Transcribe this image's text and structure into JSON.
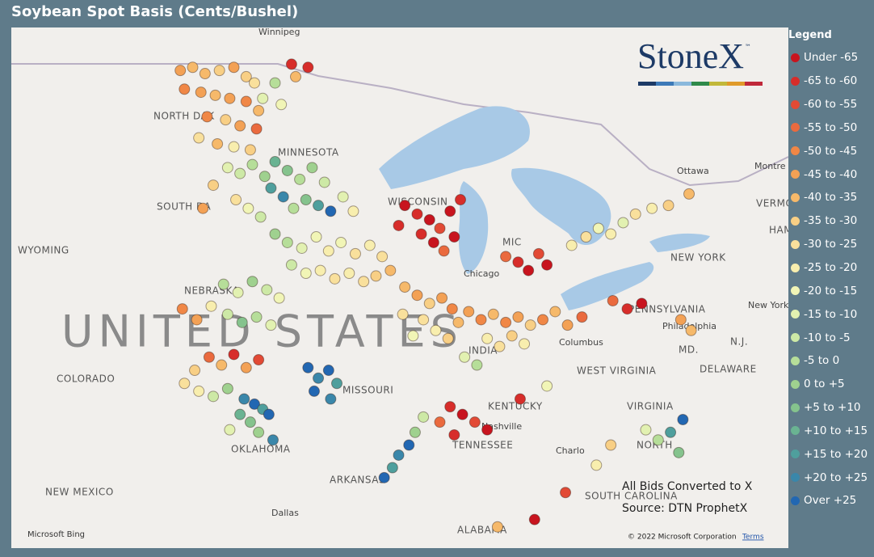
{
  "header": {
    "title": "Soybean Spot Basis (Cents/Bushel)"
  },
  "logo": {
    "text": "StoneX",
    "mark": "™"
  },
  "legend": {
    "title": "Legend",
    "items": [
      {
        "label": "Under -65",
        "color": "#c8141e"
      },
      {
        "label": "-65 to -60",
        "color": "#d72d2a"
      },
      {
        "label": "-60 to -55",
        "color": "#e24a35"
      },
      {
        "label": "-55 to -50",
        "color": "#ea6a3e"
      },
      {
        "label": "-50 to -45",
        "color": "#f08746"
      },
      {
        "label": "-45 to -40",
        "color": "#f3a155"
      },
      {
        "label": "-40 to -35",
        "color": "#f6b96a"
      },
      {
        "label": "-35 to -30",
        "color": "#f8cf85"
      },
      {
        "label": "-30 to -25",
        "color": "#f9e09c"
      },
      {
        "label": "-25 to -20",
        "color": "#f8eeae"
      },
      {
        "label": "-20 to -15",
        "color": "#f1f5b6"
      },
      {
        "label": "-15 to -10",
        "color": "#e2f1b1"
      },
      {
        "label": "-10 to -5",
        "color": "#cde9a6"
      },
      {
        "label": "-5 to 0",
        "color": "#b6de99"
      },
      {
        "label": "0 to +5",
        "color": "#9fd18f"
      },
      {
        "label": "+5 to +10",
        "color": "#85c38d"
      },
      {
        "label": "+10 to +15",
        "color": "#6ab392"
      },
      {
        "label": "+15 to +20",
        "color": "#4f9f9d"
      },
      {
        "label": "+20 to +25",
        "color": "#3a87aa"
      },
      {
        "label": "Over +25",
        "color": "#2267b2"
      }
    ]
  },
  "annotations": [
    "All Bids Converted to X",
    "Source: DTN ProphetX"
  ],
  "attribution": {
    "provider": "Microsoft Bing",
    "copyright": "© 2022 Microsoft Corporation",
    "terms": "Terms"
  },
  "places": [
    "Winnipeg",
    "NORTH DAK",
    "MINNESOTA",
    "SOUTH DA",
    "WYOMING",
    "NEBRASKA",
    "UNITED STATES",
    "COLORADO",
    "NEW MEXICO",
    "OKLAHOMA",
    "ARKANSAS",
    "Dallas",
    "MISSOURI",
    "TENNESSEE",
    "Nashville",
    "KENTUCKY",
    "INDIA",
    "Columbus",
    "WEST VIRGINIA",
    "VIRGINIA",
    "NORTH",
    "SOUTH CAROLINA",
    "Charlo",
    "ALABAMA",
    "PENNSYLVANIA",
    "Philadelphia",
    "NEW YORK",
    "New York",
    "Ottawa",
    "Montre",
    "Chicago",
    "WISCONSIN",
    "MIC",
    "DELAWARE",
    "MD.",
    "N.J.",
    "VERMON",
    "HAM"
  ],
  "points": [
    [
      -101.2,
      48.8,
      5
    ],
    [
      -100.6,
      48.9,
      6
    ],
    [
      -100.0,
      48.7,
      6
    ],
    [
      -99.3,
      48.8,
      7
    ],
    [
      -98.6,
      48.9,
      5
    ],
    [
      -98.0,
      48.6,
      7
    ],
    [
      -97.6,
      48.4,
      8
    ],
    [
      -101.0,
      48.2,
      4
    ],
    [
      -100.2,
      48.1,
      5
    ],
    [
      -99.5,
      48.0,
      6
    ],
    [
      -98.8,
      47.9,
      5
    ],
    [
      -98.0,
      47.8,
      4
    ],
    [
      -97.4,
      47.5,
      6
    ],
    [
      -99.9,
      47.3,
      4
    ],
    [
      -99.0,
      47.2,
      7
    ],
    [
      -98.3,
      47.0,
      5
    ],
    [
      -97.5,
      46.9,
      3
    ],
    [
      -100.3,
      46.6,
      8
    ],
    [
      -99.4,
      46.4,
      6
    ],
    [
      -98.6,
      46.3,
      9
    ],
    [
      -97.8,
      46.2,
      7
    ],
    [
      -97.2,
      47.9,
      11
    ],
    [
      -96.6,
      48.4,
      13
    ],
    [
      -96.3,
      47.7,
      10
    ],
    [
      -95.6,
      48.6,
      6
    ],
    [
      -95.0,
      48.9,
      1
    ],
    [
      -95.8,
      49.0,
      1
    ],
    [
      -98.9,
      45.6,
      11
    ],
    [
      -98.3,
      45.4,
      12
    ],
    [
      -97.7,
      45.7,
      13
    ],
    [
      -97.1,
      45.3,
      14
    ],
    [
      -96.6,
      45.8,
      16
    ],
    [
      -96.0,
      45.5,
      15
    ],
    [
      -95.4,
      45.2,
      13
    ],
    [
      -94.8,
      45.6,
      14
    ],
    [
      -94.2,
      45.1,
      12
    ],
    [
      -96.8,
      44.9,
      17
    ],
    [
      -96.2,
      44.6,
      18
    ],
    [
      -95.7,
      44.2,
      13
    ],
    [
      -95.1,
      44.5,
      15
    ],
    [
      -94.5,
      44.3,
      17
    ],
    [
      -93.9,
      44.1,
      19
    ],
    [
      -93.3,
      44.6,
      11
    ],
    [
      -92.8,
      44.1,
      9
    ],
    [
      -98.5,
      44.5,
      8
    ],
    [
      -97.9,
      44.2,
      10
    ],
    [
      -97.3,
      43.9,
      12
    ],
    [
      -99.6,
      45.0,
      7
    ],
    [
      -100.1,
      44.2,
      5
    ],
    [
      -96.6,
      43.3,
      14
    ],
    [
      -96.0,
      43.0,
      13
    ],
    [
      -95.3,
      42.8,
      11
    ],
    [
      -94.6,
      43.2,
      10
    ],
    [
      -94.0,
      42.7,
      9
    ],
    [
      -93.4,
      43.0,
      10
    ],
    [
      -92.7,
      42.6,
      8
    ],
    [
      -92.0,
      42.9,
      9
    ],
    [
      -91.4,
      42.5,
      8
    ],
    [
      -95.8,
      42.2,
      12
    ],
    [
      -95.1,
      41.9,
      10
    ],
    [
      -94.4,
      42.0,
      9
    ],
    [
      -93.7,
      41.7,
      8
    ],
    [
      -93.0,
      41.9,
      9
    ],
    [
      -92.3,
      41.6,
      8
    ],
    [
      -91.7,
      41.8,
      7
    ],
    [
      -91.0,
      42.0,
      6
    ],
    [
      -90.3,
      44.3,
      0
    ],
    [
      -89.7,
      44.0,
      1
    ],
    [
      -89.1,
      43.8,
      0
    ],
    [
      -88.6,
      43.5,
      2
    ],
    [
      -88.1,
      44.1,
      0
    ],
    [
      -89.5,
      43.3,
      1
    ],
    [
      -88.9,
      43.0,
      0
    ],
    [
      -88.4,
      42.7,
      3
    ],
    [
      -87.9,
      43.2,
      0
    ],
    [
      -90.6,
      43.6,
      1
    ],
    [
      -87.6,
      44.5,
      1
    ],
    [
      -90.3,
      41.4,
      6
    ],
    [
      -89.7,
      41.1,
      5
    ],
    [
      -89.1,
      40.8,
      7
    ],
    [
      -88.5,
      41.0,
      5
    ],
    [
      -88.0,
      40.6,
      4
    ],
    [
      -89.4,
      40.2,
      8
    ],
    [
      -88.8,
      39.8,
      9
    ],
    [
      -88.2,
      39.5,
      7
    ],
    [
      -89.9,
      39.6,
      10
    ],
    [
      -90.4,
      40.4,
      8
    ],
    [
      -87.7,
      40.1,
      6
    ],
    [
      -87.2,
      40.5,
      5
    ],
    [
      -86.6,
      40.2,
      4
    ],
    [
      -86.0,
      40.4,
      6
    ],
    [
      -85.4,
      40.1,
      4
    ],
    [
      -84.8,
      40.3,
      5
    ],
    [
      -84.2,
      40.0,
      7
    ],
    [
      -83.6,
      40.2,
      4
    ],
    [
      -83.0,
      40.5,
      6
    ],
    [
      -86.3,
      39.5,
      9
    ],
    [
      -85.7,
      39.2,
      8
    ],
    [
      -85.1,
      39.6,
      7
    ],
    [
      -84.5,
      39.3,
      9
    ],
    [
      -87.4,
      38.8,
      11
    ],
    [
      -86.8,
      38.5,
      13
    ],
    [
      -82.4,
      40.0,
      5
    ],
    [
      -81.7,
      40.3,
      3
    ],
    [
      -84.8,
      42.3,
      1
    ],
    [
      -84.3,
      42.0,
      0
    ],
    [
      -83.8,
      42.6,
      2
    ],
    [
      -83.4,
      42.2,
      0
    ],
    [
      -85.4,
      42.5,
      3
    ],
    [
      -82.2,
      42.9,
      9
    ],
    [
      -81.5,
      43.2,
      8
    ],
    [
      -80.9,
      43.5,
      10
    ],
    [
      -80.3,
      43.3,
      9
    ],
    [
      -79.7,
      43.7,
      11
    ],
    [
      -79.1,
      44.0,
      8
    ],
    [
      -78.3,
      44.2,
      9
    ],
    [
      -77.5,
      44.3,
      7
    ],
    [
      -76.5,
      44.7,
      6
    ],
    [
      -99.8,
      38.8,
      3
    ],
    [
      -99.2,
      38.5,
      6
    ],
    [
      -98.6,
      38.9,
      1
    ],
    [
      -98.0,
      38.4,
      5
    ],
    [
      -97.4,
      38.7,
      2
    ],
    [
      -100.5,
      38.3,
      7
    ],
    [
      -101.0,
      37.8,
      8
    ],
    [
      -100.3,
      37.5,
      9
    ],
    [
      -99.6,
      37.3,
      12
    ],
    [
      -98.9,
      37.6,
      14
    ],
    [
      -98.1,
      37.2,
      18
    ],
    [
      -97.6,
      37.0,
      19
    ],
    [
      -97.2,
      36.8,
      17
    ],
    [
      -98.3,
      36.6,
      16
    ],
    [
      -97.8,
      36.3,
      15
    ],
    [
      -96.9,
      36.6,
      19
    ],
    [
      -97.4,
      35.9,
      14
    ],
    [
      -96.7,
      35.6,
      18
    ],
    [
      -98.8,
      36.0,
      11
    ],
    [
      -95.0,
      38.4,
      19
    ],
    [
      -94.5,
      38.0,
      18
    ],
    [
      -94.0,
      38.3,
      19
    ],
    [
      -93.6,
      37.8,
      17
    ],
    [
      -94.7,
      37.5,
      19
    ],
    [
      -93.9,
      37.2,
      18
    ],
    [
      -99.1,
      41.5,
      13
    ],
    [
      -98.4,
      41.2,
      11
    ],
    [
      -97.7,
      41.6,
      14
    ],
    [
      -97.0,
      41.3,
      12
    ],
    [
      -96.4,
      41.0,
      10
    ],
    [
      -99.7,
      40.7,
      9
    ],
    [
      -98.9,
      40.4,
      12
    ],
    [
      -98.2,
      40.1,
      15
    ],
    [
      -97.5,
      40.3,
      13
    ],
    [
      -96.8,
      40.0,
      11
    ],
    [
      -100.4,
      40.2,
      5
    ],
    [
      -101.1,
      40.6,
      4
    ],
    [
      -88.1,
      36.9,
      1
    ],
    [
      -87.5,
      36.6,
      0
    ],
    [
      -86.9,
      36.3,
      2
    ],
    [
      -86.3,
      36.0,
      0
    ],
    [
      -88.6,
      36.3,
      3
    ],
    [
      -87.9,
      35.8,
      1
    ],
    [
      -90.1,
      35.4,
      19
    ],
    [
      -90.6,
      35.0,
      18
    ],
    [
      -90.9,
      34.5,
      17
    ],
    [
      -91.3,
      34.1,
      19
    ],
    [
      -89.8,
      35.9,
      14
    ],
    [
      -89.4,
      36.5,
      12
    ],
    [
      -79.5,
      40.6,
      1
    ],
    [
      -78.8,
      40.8,
      0
    ],
    [
      -80.2,
      40.9,
      3
    ],
    [
      -76.9,
      40.2,
      5
    ],
    [
      -76.4,
      39.8,
      6
    ],
    [
      -78.6,
      36.0,
      11
    ],
    [
      -78.0,
      35.6,
      13
    ],
    [
      -77.4,
      35.9,
      17
    ],
    [
      -76.8,
      36.4,
      19
    ],
    [
      -77.0,
      35.1,
      15
    ],
    [
      -80.3,
      35.4,
      7
    ],
    [
      -81.0,
      34.6,
      9
    ],
    [
      -82.5,
      33.5,
      2
    ],
    [
      -84.0,
      32.4,
      0
    ],
    [
      -85.8,
      32.1,
      6
    ],
    [
      -83.4,
      37.7,
      10
    ],
    [
      -84.7,
      37.2,
      1
    ]
  ]
}
